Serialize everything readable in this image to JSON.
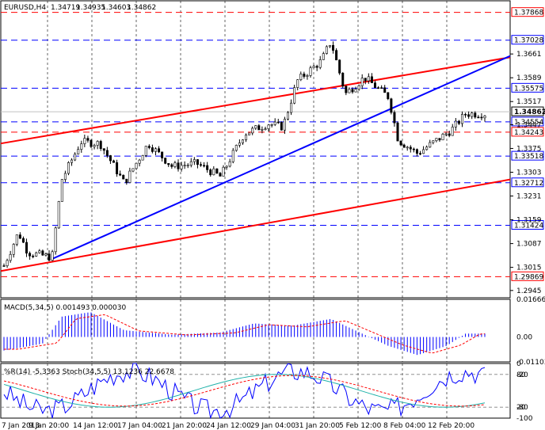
{
  "chart_data": [
    {
      "type": "candlestick",
      "title": "EURUSD,H4",
      "ohlc_header": [
        "1.34719",
        "1.34935",
        "1.34603",
        "1.34862"
      ],
      "ylim": [
        1.2923,
        1.3822
      ],
      "y_ticks": [
        "1.3661",
        "1.3589",
        "1.3517",
        "1.3447",
        "1.3375",
        "1.3303",
        "1.3231",
        "1.3159",
        "1.3087",
        "1.3015",
        "1.2945"
      ],
      "x_ticks": [
        "7 Jan 2013",
        "9 Jan 20:00",
        "14 Jan 12:00",
        "17 Jan 04:00",
        "21 Jan 20:00",
        "24 Jan 12:00",
        "29 Jan 04:00",
        "31 Jan 20:00",
        "5 Feb 12:00",
        "8 Feb 04:00",
        "12 Feb 20:00"
      ],
      "current_price": "1.34862",
      "levels": [
        {
          "value": 1.37868,
          "label": "1.37868",
          "color": "#ff0000",
          "style": "dash"
        },
        {
          "value": 1.37028,
          "label": "1.37028",
          "color": "#0000ff",
          "style": "dash"
        },
        {
          "value": 1.35575,
          "label": "1.35575",
          "color": "#0000ff",
          "style": "dash"
        },
        {
          "value": 1.34554,
          "label": "1.34554",
          "color": "#0000ff",
          "style": "dash"
        },
        {
          "value": 1.34243,
          "label": "1.34243",
          "color": "#ff0000",
          "style": "dash"
        },
        {
          "value": 1.33518,
          "label": "1.33518",
          "color": "#0000ff",
          "style": "dash"
        },
        {
          "value": 1.32712,
          "label": "1.32712",
          "color": "#0000ff",
          "style": "dash"
        },
        {
          "value": 1.31424,
          "label": "1.31424",
          "color": "#0000ff",
          "style": "dash"
        },
        {
          "value": 1.29869,
          "label": "1.29869",
          "color": "#ff0000",
          "style": "dash"
        }
      ],
      "trendlines": [
        {
          "color": "#ff0000",
          "from": [
            0,
            1.339
          ],
          "to": [
            1,
            1.3651
          ]
        },
        {
          "color": "#0000ff",
          "from": [
            0.1,
            1.304
          ],
          "to": [
            1,
            1.3655
          ]
        },
        {
          "color": "#ff0000",
          "from": [
            0,
            1.3004
          ],
          "to": [
            1,
            1.3281
          ]
        }
      ],
      "colors": {
        "bull": "#000000",
        "bear": "#000000",
        "grid": "#000000"
      }
    },
    {
      "type": "bar",
      "title": "MACD(5,34,5) 0.001493 0.000030",
      "ylim": [
        -0.01103,
        0.01666
      ],
      "y_ticks": [
        "0.016662",
        "0.00",
        "-0.011031"
      ],
      "series": [
        {
          "name": "MACD",
          "color": "#0000ff"
        },
        {
          "name": "Signal",
          "color": "#ff0000",
          "style": "dash"
        }
      ]
    },
    {
      "type": "line",
      "title": "%R(14) -5.3363 Stoch(34,5,5) 13.1236 22.6678",
      "y_ticks": [
        "0",
        "-20",
        "-80",
        "-100",
        "80",
        "20"
      ],
      "series": [
        {
          "name": "%R",
          "color": "#0000ff"
        },
        {
          "name": "Stoch main",
          "color": "#20b2aa"
        },
        {
          "name": "Stoch signal",
          "color": "#ff0000",
          "style": "dash"
        }
      ]
    }
  ]
}
